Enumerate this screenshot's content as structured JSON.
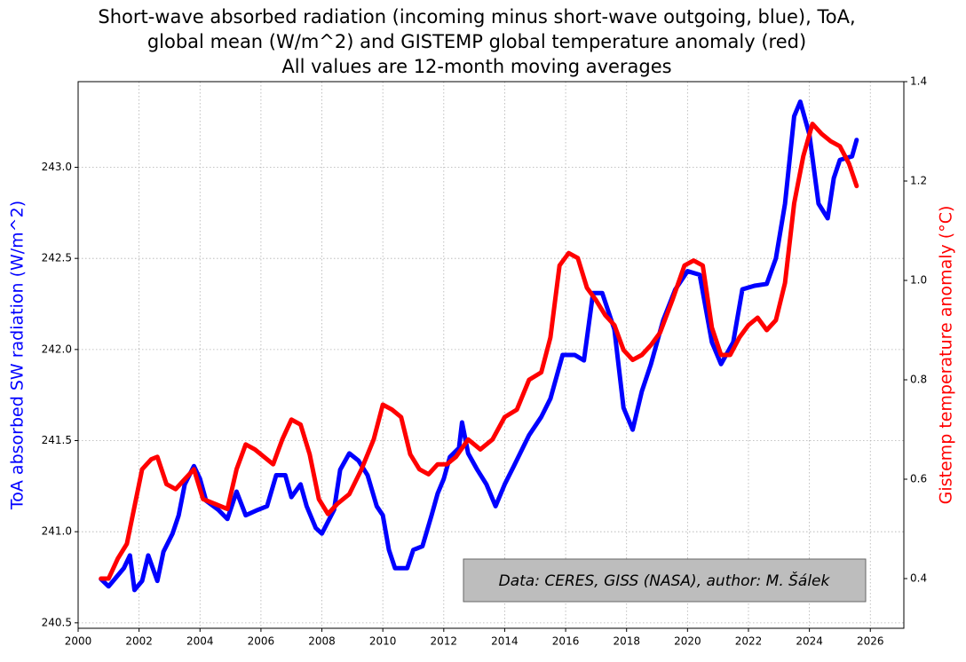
{
  "chart_data": {
    "type": "line",
    "title": [
      "Short-wave absorbed radiation (incoming minus short-wave outgoing, blue), ToA,",
      "global mean (W/m^2) and GISTEMP global temperature anomaly (red)",
      "All values are 12-month moving averages"
    ],
    "ylabel": "ToA absorbed SW radiation (W/m^2)",
    "y2label": "Gistemp temperature anomaly (°C)",
    "annotation": "Data: CERES, GISS (NASA), author: M. Šálek",
    "grid": true,
    "xlim": [
      2000,
      2027.1
    ],
    "xticks": [
      2000,
      2002,
      2004,
      2006,
      2008,
      2010,
      2012,
      2014,
      2016,
      2018,
      2020,
      2022,
      2024,
      2026
    ],
    "ylim": [
      240.47,
      243.47
    ],
    "yticks": [
      240.5,
      {
        "value": 241,
        "label": "241.0"
      },
      241.5,
      {
        "value": 242,
        "label": "242.0"
      },
      242.5,
      {
        "value": 243,
        "label": "243.0"
      }
    ],
    "y2lim": [
      0.3,
      1.4
    ],
    "y2ticks": [
      0.4,
      0.6,
      0.8,
      {
        "value": 1,
        "label": "1.0"
      },
      1.2,
      1.4
    ],
    "series": [
      {
        "color": "#0000ff",
        "x": [
          2000.75,
          2001.0,
          2001.5,
          2001.7,
          2001.85,
          2002.1,
          2002.3,
          2002.6,
          2002.8,
          2003.1,
          2003.3,
          2003.5,
          2003.8,
          2004.0,
          2004.2,
          2004.6,
          2004.9,
          2005.2,
          2005.5,
          2005.9,
          2006.2,
          2006.5,
          2006.8,
          2007.0,
          2007.3,
          2007.5,
          2007.8,
          2008.0,
          2008.4,
          2008.6,
          2008.9,
          2009.2,
          2009.5,
          2009.8,
          2010.0,
          2010.2,
          2010.4,
          2010.8,
          2011.0,
          2011.3,
          2011.6,
          2011.8,
          2012.0,
          2012.2,
          2012.5,
          2012.6,
          2012.8,
          2013.1,
          2013.4,
          2013.7,
          2014.0,
          2014.3,
          2014.8,
          2015.2,
          2015.5,
          2015.9,
          2016.3,
          2016.6,
          2016.9,
          2017.2,
          2017.6,
          2017.9,
          2018.2,
          2018.5,
          2018.8,
          2019.2,
          2019.6,
          2020.0,
          2020.4,
          2020.8,
          2021.1,
          2021.5,
          2021.8,
          2022.2,
          2022.6,
          2022.9,
          2023.2,
          2023.5,
          2023.7,
          2024.0,
          2024.3,
          2024.6,
          2024.8,
          2025.0,
          2025.4,
          2025.55
        ],
        "values": [
          240.74,
          240.7,
          240.8,
          240.87,
          240.68,
          240.73,
          240.87,
          240.73,
          240.89,
          240.99,
          241.09,
          241.26,
          241.36,
          241.29,
          241.17,
          241.12,
          241.07,
          241.22,
          241.09,
          241.12,
          241.14,
          241.31,
          241.31,
          241.19,
          241.26,
          241.14,
          241.02,
          240.99,
          241.12,
          241.34,
          241.43,
          241.39,
          241.31,
          241.14,
          241.09,
          240.9,
          240.8,
          240.8,
          240.9,
          240.92,
          241.09,
          241.21,
          241.29,
          241.41,
          241.46,
          241.6,
          241.43,
          241.34,
          241.26,
          241.14,
          241.26,
          241.36,
          241.53,
          241.63,
          241.73,
          241.97,
          241.97,
          241.94,
          242.31,
          242.31,
          242.11,
          241.68,
          241.56,
          241.77,
          241.92,
          242.16,
          242.33,
          242.43,
          242.41,
          242.04,
          241.92,
          242.04,
          242.33,
          242.35,
          242.36,
          242.5,
          242.8,
          243.28,
          243.36,
          243.18,
          242.8,
          242.72,
          242.94,
          243.04,
          243.06,
          243.15
        ]
      },
      {
        "color": "#ff0000",
        "axis": "y2",
        "x": [
          2000.75,
          2001.0,
          2001.3,
          2001.6,
          2001.9,
          2002.1,
          2002.4,
          2002.6,
          2002.9,
          2003.2,
          2003.5,
          2003.8,
          2004.1,
          2004.5,
          2004.9,
          2005.2,
          2005.5,
          2005.8,
          2006.1,
          2006.4,
          2006.7,
          2007.0,
          2007.3,
          2007.6,
          2007.9,
          2008.2,
          2008.5,
          2008.9,
          2009.3,
          2009.7,
          2010.0,
          2010.3,
          2010.6,
          2010.9,
          2011.2,
          2011.5,
          2011.8,
          2012.1,
          2012.4,
          2012.8,
          2013.2,
          2013.6,
          2014.0,
          2014.4,
          2014.8,
          2015.2,
          2015.5,
          2015.8,
          2016.1,
          2016.4,
          2016.7,
          2017.0,
          2017.3,
          2017.6,
          2017.9,
          2018.2,
          2018.5,
          2018.8,
          2019.1,
          2019.5,
          2019.9,
          2020.2,
          2020.5,
          2020.8,
          2021.1,
          2021.4,
          2021.7,
          2022.0,
          2022.3,
          2022.6,
          2022.9,
          2023.2,
          2023.5,
          2023.8,
          2024.1,
          2024.4,
          2024.7,
          2025.0,
          2025.3,
          2025.55
        ],
        "values": [
          0.4,
          0.4,
          0.44,
          0.47,
          0.56,
          0.62,
          0.64,
          0.645,
          0.59,
          0.58,
          0.6,
          0.62,
          0.56,
          0.55,
          0.54,
          0.62,
          0.67,
          0.66,
          0.645,
          0.63,
          0.68,
          0.72,
          0.71,
          0.65,
          0.56,
          0.53,
          0.55,
          0.57,
          0.62,
          0.68,
          0.75,
          0.74,
          0.725,
          0.65,
          0.62,
          0.61,
          0.63,
          0.63,
          0.645,
          0.68,
          0.66,
          0.68,
          0.725,
          0.74,
          0.8,
          0.815,
          0.885,
          1.03,
          1.055,
          1.045,
          0.985,
          0.96,
          0.93,
          0.91,
          0.86,
          0.84,
          0.85,
          0.87,
          0.895,
          0.96,
          1.03,
          1.04,
          1.03,
          0.905,
          0.85,
          0.85,
          0.885,
          0.91,
          0.925,
          0.9,
          0.92,
          0.995,
          1.155,
          1.25,
          1.315,
          1.295,
          1.28,
          1.27,
          1.235,
          1.19
        ]
      }
    ]
  }
}
